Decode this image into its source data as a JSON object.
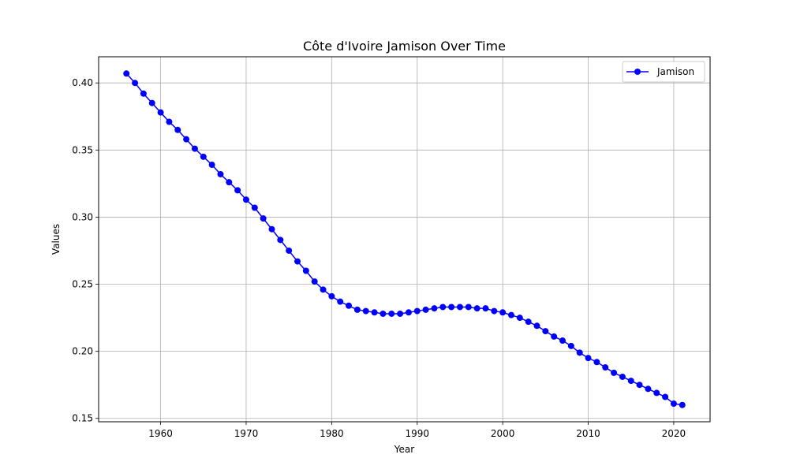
{
  "chart_data": {
    "type": "line",
    "title": "Côte d'Ivoire Jamison Over Time",
    "xlabel": "Year",
    "ylabel": "Values",
    "xlim": [
      1952.75,
      2024.25
    ],
    "ylim": [
      0.1475,
      0.4195
    ],
    "xticks": [
      1960,
      1970,
      1980,
      1990,
      2000,
      2010,
      2020
    ],
    "yticks": [
      0.15,
      0.2,
      0.25,
      0.3,
      0.35,
      0.4
    ],
    "ytick_labels": [
      "0.15",
      "0.20",
      "0.25",
      "0.30",
      "0.35",
      "0.40"
    ],
    "grid": true,
    "legend_position": "top-right",
    "series": [
      {
        "name": "Jamison",
        "color": "#0000ff",
        "marker": "circle",
        "x": [
          1956,
          1957,
          1958,
          1959,
          1960,
          1961,
          1962,
          1963,
          1964,
          1965,
          1966,
          1967,
          1968,
          1969,
          1970,
          1971,
          1972,
          1973,
          1974,
          1975,
          1976,
          1977,
          1978,
          1979,
          1980,
          1981,
          1982,
          1983,
          1984,
          1985,
          1986,
          1987,
          1988,
          1989,
          1990,
          1991,
          1992,
          1993,
          1994,
          1995,
          1996,
          1997,
          1998,
          1999,
          2000,
          2001,
          2002,
          2003,
          2004,
          2005,
          2006,
          2007,
          2008,
          2009,
          2010,
          2011,
          2012,
          2013,
          2014,
          2015,
          2016,
          2017,
          2018,
          2019,
          2020,
          2021
        ],
        "values": [
          0.407,
          0.4,
          0.392,
          0.385,
          0.378,
          0.371,
          0.365,
          0.358,
          0.351,
          0.345,
          0.339,
          0.332,
          0.326,
          0.32,
          0.313,
          0.307,
          0.299,
          0.291,
          0.283,
          0.275,
          0.267,
          0.26,
          0.252,
          0.246,
          0.241,
          0.237,
          0.234,
          0.231,
          0.23,
          0.229,
          0.228,
          0.228,
          0.228,
          0.229,
          0.23,
          0.231,
          0.232,
          0.233,
          0.233,
          0.233,
          0.233,
          0.232,
          0.232,
          0.23,
          0.229,
          0.227,
          0.225,
          0.222,
          0.219,
          0.215,
          0.211,
          0.208,
          0.204,
          0.199,
          0.195,
          0.192,
          0.188,
          0.184,
          0.181,
          0.178,
          0.175,
          0.172,
          0.169,
          0.166,
          0.161,
          0.16
        ]
      }
    ]
  }
}
